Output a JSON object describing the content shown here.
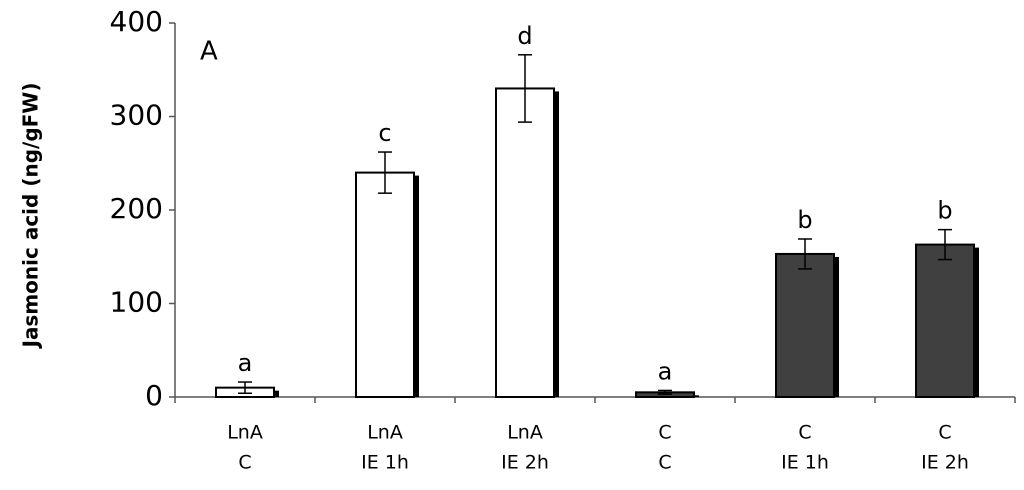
{
  "chart_data": {
    "type": "bar",
    "panel_label": "A",
    "y_label": "Jasmonic acid (ng/gFW)",
    "categories": [
      [
        "LnA",
        "C"
      ],
      [
        "LnA",
        "IE 1h"
      ],
      [
        "LnA",
        "IE 2h"
      ],
      [
        "C",
        "C"
      ],
      [
        "C",
        "IE 1h"
      ],
      [
        "C",
        "IE 2h"
      ]
    ],
    "values": [
      10,
      240,
      330,
      5,
      153,
      163
    ],
    "errors": [
      6,
      22,
      36,
      2,
      16,
      16
    ],
    "significance_labels": [
      "a",
      "c",
      "d",
      "a",
      "b",
      "b"
    ],
    "colors": [
      "#ffffff",
      "#ffffff",
      "#ffffff",
      "#404040",
      "#404040",
      "#404040"
    ],
    "ylim": [
      0,
      400
    ],
    "yticks": [
      0,
      100,
      200,
      300,
      400
    ]
  }
}
